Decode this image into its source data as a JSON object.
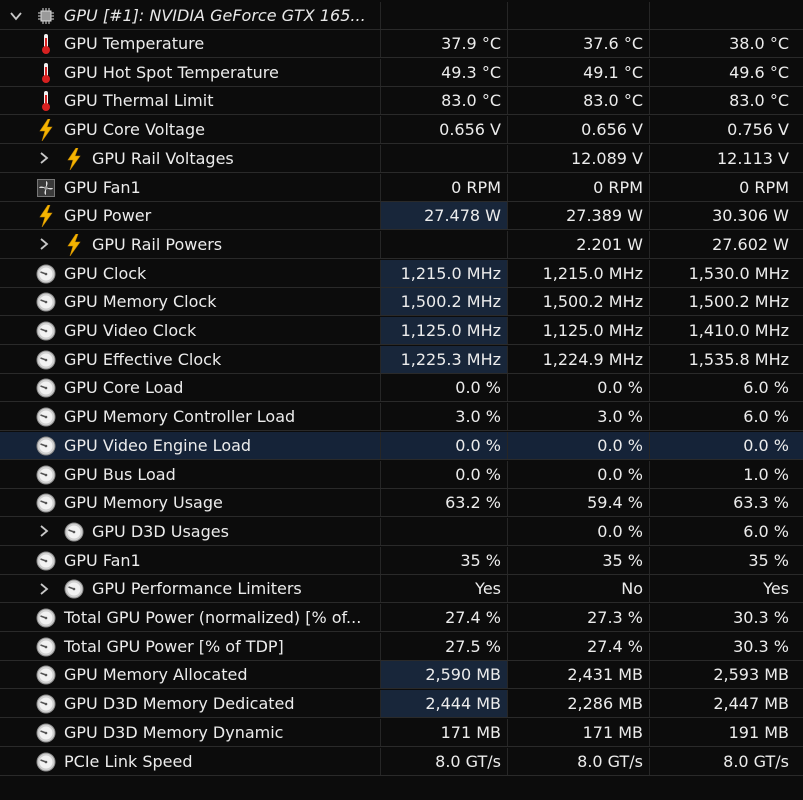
{
  "group": {
    "title": "GPU [#1]: NVIDIA GeForce GTX 165..."
  },
  "rows": [
    {
      "label": "GPU Temperature",
      "icon": "thermometer-icon",
      "expand": false,
      "indent": 0,
      "cur": "37.9 °C",
      "min": "37.6 °C",
      "max": "38.0 °C",
      "hl": false
    },
    {
      "label": "GPU Hot Spot Temperature",
      "icon": "thermometer-icon",
      "expand": false,
      "indent": 0,
      "cur": "49.3 °C",
      "min": "49.1 °C",
      "max": "49.6 °C",
      "hl": false
    },
    {
      "label": "GPU Thermal Limit",
      "icon": "thermometer-icon",
      "expand": false,
      "indent": 0,
      "cur": "83.0 °C",
      "min": "83.0 °C",
      "max": "83.0 °C",
      "hl": false
    },
    {
      "label": "GPU Core Voltage",
      "icon": "lightning-icon",
      "expand": false,
      "indent": 0,
      "cur": "0.656 V",
      "min": "0.656 V",
      "max": "0.756 V",
      "hl": false
    },
    {
      "label": "GPU Rail Voltages",
      "icon": "lightning-icon",
      "expand": true,
      "indent": 1,
      "cur": "",
      "min": "12.089 V",
      "max": "12.113 V",
      "hl": false
    },
    {
      "label": "GPU Fan1",
      "icon": "fan-icon",
      "expand": false,
      "indent": 0,
      "cur": "0 RPM",
      "min": "0 RPM",
      "max": "0 RPM",
      "hl": false
    },
    {
      "label": "GPU Power",
      "icon": "lightning-icon",
      "expand": false,
      "indent": 0,
      "cur": "27.478 W",
      "min": "27.389 W",
      "max": "30.306 W",
      "hl": true
    },
    {
      "label": "GPU Rail Powers",
      "icon": "lightning-icon",
      "expand": true,
      "indent": 1,
      "cur": "",
      "min": "2.201 W",
      "max": "27.602 W",
      "hl": false
    },
    {
      "label": "GPU Clock",
      "icon": "gauge-icon",
      "expand": false,
      "indent": 0,
      "cur": "1,215.0 MHz",
      "min": "1,215.0 MHz",
      "max": "1,530.0 MHz",
      "hl": true
    },
    {
      "label": "GPU Memory Clock",
      "icon": "gauge-icon",
      "expand": false,
      "indent": 0,
      "cur": "1,500.2 MHz",
      "min": "1,500.2 MHz",
      "max": "1,500.2 MHz",
      "hl": true
    },
    {
      "label": "GPU Video Clock",
      "icon": "gauge-icon",
      "expand": false,
      "indent": 0,
      "cur": "1,125.0 MHz",
      "min": "1,125.0 MHz",
      "max": "1,410.0 MHz",
      "hl": true
    },
    {
      "label": "GPU Effective Clock",
      "icon": "gauge-icon",
      "expand": false,
      "indent": 0,
      "cur": "1,225.3 MHz",
      "min": "1,224.9 MHz",
      "max": "1,535.8 MHz",
      "hl": true
    },
    {
      "label": "GPU Core Load",
      "icon": "gauge-icon",
      "expand": false,
      "indent": 0,
      "cur": "0.0 %",
      "min": "0.0 %",
      "max": "6.0 %",
      "hl": false
    },
    {
      "label": "GPU Memory Controller Load",
      "icon": "gauge-icon",
      "expand": false,
      "indent": 0,
      "cur": "3.0 %",
      "min": "3.0 %",
      "max": "6.0 %",
      "hl": false
    },
    {
      "label": "GPU Video Engine Load",
      "icon": "gauge-icon",
      "expand": false,
      "indent": 0,
      "cur": "0.0 %",
      "min": "0.0 %",
      "max": "0.0 %",
      "hl": false,
      "selected": true
    },
    {
      "label": "GPU Bus Load",
      "icon": "gauge-icon",
      "expand": false,
      "indent": 0,
      "cur": "0.0 %",
      "min": "0.0 %",
      "max": "1.0 %",
      "hl": false
    },
    {
      "label": "GPU Memory Usage",
      "icon": "gauge-icon",
      "expand": false,
      "indent": 0,
      "cur": "63.2 %",
      "min": "59.4 %",
      "max": "63.3 %",
      "hl": false
    },
    {
      "label": "GPU D3D Usages",
      "icon": "gauge-icon",
      "expand": true,
      "indent": 1,
      "cur": "",
      "min": "0.0 %",
      "max": "6.0 %",
      "hl": false
    },
    {
      "label": "GPU Fan1",
      "icon": "gauge-icon",
      "expand": false,
      "indent": 0,
      "cur": "35 %",
      "min": "35 %",
      "max": "35 %",
      "hl": false
    },
    {
      "label": "GPU Performance Limiters",
      "icon": "gauge-icon",
      "expand": true,
      "indent": 1,
      "cur": "Yes",
      "min": "No",
      "max": "Yes",
      "hl": false
    },
    {
      "label": "Total GPU Power (normalized) [% of...",
      "icon": "gauge-icon",
      "expand": false,
      "indent": 0,
      "cur": "27.4 %",
      "min": "27.3 %",
      "max": "30.3 %",
      "hl": false
    },
    {
      "label": "Total GPU Power [% of TDP]",
      "icon": "gauge-icon",
      "expand": false,
      "indent": 0,
      "cur": "27.5 %",
      "min": "27.4 %",
      "max": "30.3 %",
      "hl": false
    },
    {
      "label": "GPU Memory Allocated",
      "icon": "gauge-icon",
      "expand": false,
      "indent": 0,
      "cur": "2,590 MB",
      "min": "2,431 MB",
      "max": "2,593 MB",
      "hl": true
    },
    {
      "label": "GPU D3D Memory Dedicated",
      "icon": "gauge-icon",
      "expand": false,
      "indent": 0,
      "cur": "2,444 MB",
      "min": "2,286 MB",
      "max": "2,447 MB",
      "hl": true
    },
    {
      "label": "GPU D3D Memory Dynamic",
      "icon": "gauge-icon",
      "expand": false,
      "indent": 0,
      "cur": "171 MB",
      "min": "171 MB",
      "max": "191 MB",
      "hl": false
    },
    {
      "label": "PCIe Link Speed",
      "icon": "gauge-icon",
      "expand": false,
      "indent": 0,
      "cur": "8.0 GT/s",
      "min": "8.0 GT/s",
      "max": "8.0 GT/s",
      "hl": false
    }
  ],
  "colors": {
    "selected_row": "#152338",
    "highlight_cell": "#18263a",
    "background": "#0c0c0c"
  }
}
